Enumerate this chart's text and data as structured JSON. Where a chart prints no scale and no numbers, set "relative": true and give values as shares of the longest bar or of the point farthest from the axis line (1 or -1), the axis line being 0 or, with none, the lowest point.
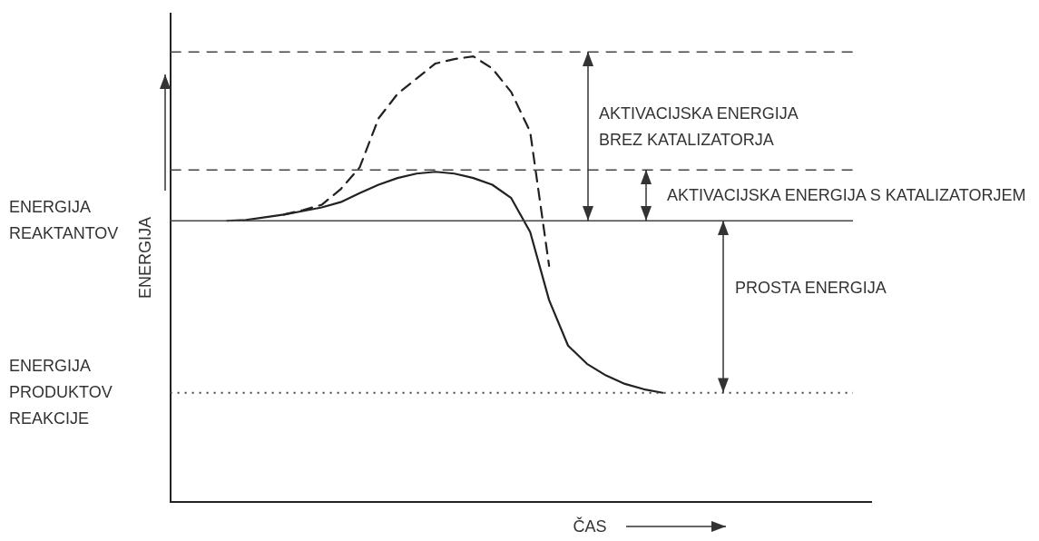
{
  "chart_data": {
    "type": "line",
    "relative": true,
    "xlabel": "ČAS",
    "ylabel": "ENERGIJA",
    "categories": [
      null,
      null,
      null,
      null,
      null,
      null,
      null,
      null,
      null,
      null,
      null,
      null,
      null,
      null,
      null,
      null,
      null,
      null,
      null,
      null,
      null,
      null,
      null,
      null,
      null,
      null,
      null,
      null,
      null,
      null,
      null,
      null,
      null,
      null,
      null,
      null,
      null,
      null
    ],
    "series": [
      {
        "color": "#222222",
        "line_style": "solid",
        "values": [
          null,
          null,
          null,
          0.631,
          0.633,
          0.639,
          0.645,
          0.653,
          0.661,
          0.673,
          0.693,
          0.712,
          0.727,
          0.737,
          0.741,
          0.737,
          0.727,
          0.712,
          0.682,
          0.606,
          0.453,
          0.351,
          0.31,
          0.284,
          0.265,
          0.253,
          0.245,
          null,
          null,
          null,
          null,
          null,
          null,
          null,
          null,
          null,
          null,
          null
        ]
      },
      {
        "color": "#222222",
        "line_style": "dashed",
        "values": [
          null,
          null,
          null,
          null,
          null,
          null,
          0.645,
          0.655,
          0.667,
          0.702,
          0.751,
          0.861,
          0.916,
          0.95,
          0.984,
          0.994,
          1,
          0.973,
          0.92,
          0.831,
          0.53,
          null,
          null,
          null,
          null,
          null,
          null,
          null,
          null,
          null,
          null,
          null,
          null,
          null,
          null,
          null,
          null,
          null
        ]
      }
    ],
    "ref_lines": [
      {
        "axis": "y",
        "value": 1.01,
        "color": "#444444",
        "line_style": "dashed"
      },
      {
        "axis": "y",
        "value": 0.745,
        "color": "#444444",
        "line_style": "dashed"
      },
      {
        "axis": "y",
        "value": 0.631,
        "color": "#444444",
        "line_style": "solid"
      },
      {
        "axis": "y",
        "value": 0.245,
        "color": "#444444",
        "line_style": "dotted"
      }
    ],
    "annotations": [
      "ENERGIJA REAKTANTOV",
      "ENERGIJA PRODUKTOV REAKCIJE",
      "AKTIVACIJSKA ENERGIJA BREZ KATALIZATORJA",
      "AKTIVACIJSKA ENERGIJA S KATALIZATORJEM",
      "PROSTA ENERGIJA"
    ],
    "marker": "none",
    "legend": false,
    "grid": false
  }
}
